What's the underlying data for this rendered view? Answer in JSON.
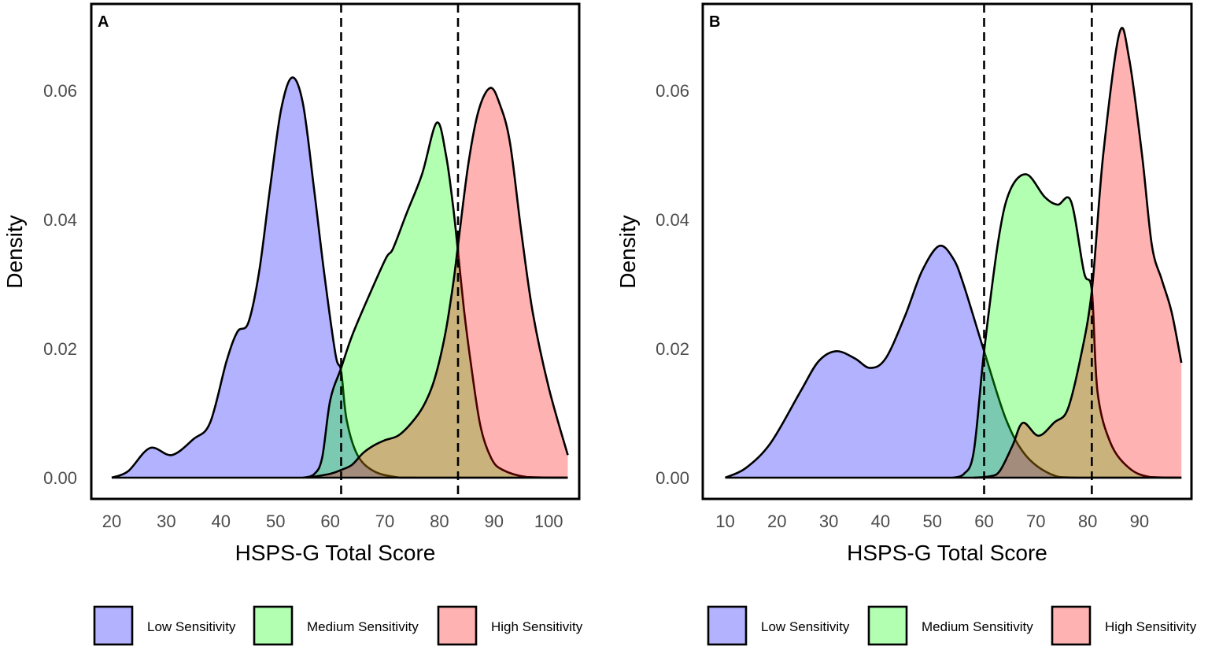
{
  "chart_data": [
    {
      "type": "area",
      "panel_label": "A",
      "xlabel": "HSPS-G Total Score",
      "ylabel": "Density",
      "xlim": [
        16,
        105.5
      ],
      "ylim": [
        0,
        0.0715
      ],
      "x_ticks": [
        20,
        30,
        40,
        50,
        60,
        70,
        80,
        90,
        100
      ],
      "y_ticks": [
        {
          "value": 0,
          "label": "0.00"
        },
        {
          "value": 0.02,
          "label": "0.02"
        },
        {
          "value": 0.04,
          "label": "0.04"
        },
        {
          "value": 0.06,
          "label": "0.06"
        }
      ],
      "cutoffs": [
        62,
        83.4
      ],
      "grid": false,
      "legend_position": "bottom",
      "series": [
        {
          "name": "Low Sensitivity",
          "color": "#0000ff",
          "points": [
            [
              20,
              0
            ],
            [
              23,
              0.001
            ],
            [
              27,
              0.0046
            ],
            [
              31,
              0.0035
            ],
            [
              35,
              0.006
            ],
            [
              38,
              0.0085
            ],
            [
              41,
              0.018
            ],
            [
              43,
              0.0226
            ],
            [
              45,
              0.024
            ],
            [
              47,
              0.032
            ],
            [
              49,
              0.045
            ],
            [
              51,
              0.057
            ],
            [
              53,
              0.062
            ],
            [
              55,
              0.058
            ],
            [
              57,
              0.045
            ],
            [
              59,
              0.031
            ],
            [
              61,
              0.019
            ],
            [
              62,
              0.0165
            ],
            [
              63,
              0.009
            ],
            [
              65,
              0.0035
            ],
            [
              68,
              0.001
            ],
            [
              72,
              0.0001
            ],
            [
              76,
              0
            ],
            [
              103.5,
              0
            ]
          ]
        },
        {
          "name": "Medium Sensitivity",
          "color": "#00ff00",
          "points": [
            [
              55,
              0
            ],
            [
              57,
              0.0005
            ],
            [
              58.5,
              0.003
            ],
            [
              60,
              0.012
            ],
            [
              62,
              0.017
            ],
            [
              64,
              0.022
            ],
            [
              67,
              0.028
            ],
            [
              70.2,
              0.034
            ],
            [
              71.5,
              0.0355
            ],
            [
              74,
              0.041
            ],
            [
              76.8,
              0.047
            ],
            [
              79.5,
              0.055
            ],
            [
              81.2,
              0.05
            ],
            [
              82.5,
              0.042
            ],
            [
              83.4,
              0.035
            ],
            [
              84.5,
              0.026
            ],
            [
              85.7,
              0.018
            ],
            [
              87.5,
              0.008
            ],
            [
              89.5,
              0.003
            ],
            [
              91.6,
              0.0012
            ],
            [
              96,
              0.0001
            ],
            [
              103.5,
              0
            ]
          ]
        },
        {
          "name": "High Sensitivity",
          "color": "#ff0000",
          "points": [
            [
              56,
              0
            ],
            [
              60,
              0.0006
            ],
            [
              62,
              0.0012
            ],
            [
              64,
              0.002
            ],
            [
              66,
              0.0038
            ],
            [
              68,
              0.005
            ],
            [
              70,
              0.0058
            ],
            [
              72.4,
              0.0065
            ],
            [
              74.7,
              0.0083
            ],
            [
              77,
              0.011
            ],
            [
              79,
              0.015
            ],
            [
              81,
              0.022
            ],
            [
              82.5,
              0.03
            ],
            [
              83.4,
              0.036
            ],
            [
              85.3,
              0.0487
            ],
            [
              87.2,
              0.057
            ],
            [
              89.3,
              0.0604
            ],
            [
              91,
              0.058
            ],
            [
              92.9,
              0.052
            ],
            [
              95,
              0.038
            ],
            [
              97.1,
              0.0255
            ],
            [
              100,
              0.014
            ],
            [
              103.5,
              0.0035
            ]
          ]
        }
      ]
    },
    {
      "type": "area",
      "panel_label": "B",
      "xlabel": "HSPS-G Total Score",
      "ylabel": "Density",
      "xlim": [
        5.5,
        100.5
      ],
      "ylim": [
        0,
        0.0715
      ],
      "x_ticks": [
        10,
        20,
        30,
        40,
        50,
        60,
        70,
        80,
        90
      ],
      "y_ticks": [
        {
          "value": 0,
          "label": "0.00"
        },
        {
          "value": 0.02,
          "label": "0.02"
        },
        {
          "value": 0.04,
          "label": "0.04"
        },
        {
          "value": 0.06,
          "label": "0.06"
        }
      ],
      "cutoffs": [
        60,
        80.8
      ],
      "grid": false,
      "legend_position": "bottom",
      "series": [
        {
          "name": "Low Sensitivity",
          "color": "#0000ff",
          "points": [
            [
              10,
              0
            ],
            [
              14,
              0.0015
            ],
            [
              18.8,
              0.0054
            ],
            [
              24.5,
              0.0133
            ],
            [
              28,
              0.018
            ],
            [
              31.4,
              0.0196
            ],
            [
              35,
              0.0185
            ],
            [
              38,
              0.017
            ],
            [
              41,
              0.0185
            ],
            [
              44.7,
              0.025
            ],
            [
              48,
              0.032
            ],
            [
              51.3,
              0.0359
            ],
            [
              54,
              0.034
            ],
            [
              56,
              0.03
            ],
            [
              60,
              0.0196
            ],
            [
              64.2,
              0.0091
            ],
            [
              68,
              0.0035
            ],
            [
              73,
              0.0005
            ],
            [
              78,
              0
            ],
            [
              98.1,
              0
            ]
          ]
        },
        {
          "name": "Medium Sensitivity",
          "color": "#00ff00",
          "points": [
            [
              54,
              0
            ],
            [
              56,
              0.0005
            ],
            [
              58,
              0.004
            ],
            [
              60,
              0.0196
            ],
            [
              62.8,
              0.037
            ],
            [
              65,
              0.0445
            ],
            [
              68.2,
              0.047
            ],
            [
              71.7,
              0.0435
            ],
            [
              74.2,
              0.0423
            ],
            [
              76.8,
              0.0428
            ],
            [
              79.3,
              0.0318
            ],
            [
              80.8,
              0.029
            ],
            [
              81.9,
              0.0133
            ],
            [
              84.4,
              0.0054
            ],
            [
              88,
              0.0015
            ],
            [
              92,
              0.0001
            ],
            [
              98.1,
              0
            ]
          ]
        },
        {
          "name": "High Sensitivity",
          "color": "#ff0000",
          "points": [
            [
              58,
              0
            ],
            [
              61,
              0.0002
            ],
            [
              63,
              0.001
            ],
            [
              65.5,
              0.005
            ],
            [
              67.5,
              0.0085
            ],
            [
              70.5,
              0.0065
            ],
            [
              73.6,
              0.0086
            ],
            [
              76.1,
              0.0105
            ],
            [
              78.6,
              0.0185
            ],
            [
              80.8,
              0.029
            ],
            [
              83,
              0.05
            ],
            [
              86.1,
              0.0688
            ],
            [
              88,
              0.065
            ],
            [
              90.5,
              0.05
            ],
            [
              92.4,
              0.036
            ],
            [
              94.3,
              0.0307
            ],
            [
              96.2,
              0.0257
            ],
            [
              98.1,
              0.0178
            ]
          ]
        }
      ]
    }
  ]
}
